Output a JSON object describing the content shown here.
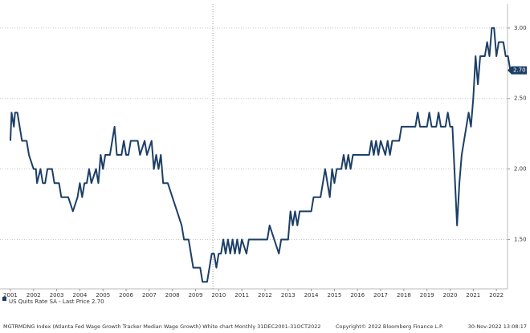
{
  "chart_data": {
    "type": "line",
    "x": [
      2001.0,
      2001.05,
      2001.15,
      2001.2,
      2001.3,
      2001.4,
      2001.5,
      2001.7,
      2001.8,
      2002.0,
      2002.1,
      2002.15,
      2002.3,
      2002.4,
      2002.5,
      2002.6,
      2002.8,
      2002.9,
      2003.1,
      2003.2,
      2003.4,
      2003.5,
      2003.7,
      2003.9,
      2004.0,
      2004.1,
      2004.2,
      2004.3,
      2004.4,
      2004.5,
      2004.7,
      2004.8,
      2004.9,
      2005.0,
      2005.1,
      2005.2,
      2005.3,
      2005.4,
      2005.5,
      2005.6,
      2005.8,
      2005.9,
      2006.0,
      2006.1,
      2006.2,
      2006.5,
      2006.6,
      2006.8,
      2006.9,
      2007.1,
      2007.2,
      2007.3,
      2007.4,
      2007.5,
      2007.6,
      2007.8,
      2008.0,
      2008.2,
      2008.4,
      2008.5,
      2008.7,
      2008.8,
      2008.9,
      2009.2,
      2009.3,
      2009.5,
      2009.6,
      2009.7,
      2009.8,
      2009.9,
      2010.0,
      2010.1,
      2010.2,
      2010.3,
      2010.4,
      2010.5,
      2010.6,
      2010.7,
      2010.8,
      2010.9,
      2011.0,
      2011.2,
      2011.3,
      2011.9,
      2012.1,
      2012.2,
      2012.4,
      2012.6,
      2012.7,
      2013.0,
      2013.1,
      2013.2,
      2013.3,
      2013.4,
      2013.5,
      2014.0,
      2014.1,
      2014.4,
      2014.5,
      2014.6,
      2014.7,
      2014.8,
      2014.9,
      2015.0,
      2015.1,
      2015.3,
      2015.4,
      2015.5,
      2015.6,
      2015.7,
      2015.8,
      2016.5,
      2016.6,
      2016.7,
      2016.8,
      2016.9,
      2017.0,
      2017.2,
      2017.3,
      2017.4,
      2017.5,
      2017.8,
      2017.9,
      2018.5,
      2018.6,
      2018.7,
      2019.0,
      2019.1,
      2019.2,
      2019.4,
      2019.5,
      2019.6,
      2019.8,
      2019.9,
      2020.0,
      2020.1,
      2020.3,
      2020.4,
      2020.5,
      2020.6,
      2020.7,
      2020.8,
      2020.9,
      2021.0,
      2021.1,
      2021.2,
      2021.3,
      2021.5,
      2021.6,
      2021.7,
      2021.8,
      2021.9,
      2022.0,
      2022.1,
      2022.3,
      2022.4,
      2022.5,
      2022.6,
      2022.8
    ],
    "series": [
      {
        "name": "US Quits Rate SA",
        "color": "#1c3f66",
        "values": [
          2.2,
          2.4,
          2.3,
          2.4,
          2.4,
          2.3,
          2.2,
          2.2,
          2.1,
          2.0,
          2.0,
          1.9,
          2.0,
          1.9,
          1.9,
          2.0,
          2.0,
          1.9,
          1.9,
          1.8,
          1.8,
          1.8,
          1.7,
          1.8,
          1.9,
          1.8,
          1.9,
          1.9,
          2.0,
          1.9,
          2.0,
          1.9,
          2.1,
          2.0,
          2.1,
          2.1,
          2.1,
          2.2,
          2.3,
          2.1,
          2.1,
          2.2,
          2.1,
          2.1,
          2.2,
          2.2,
          2.1,
          2.2,
          2.1,
          2.2,
          2.0,
          2.1,
          2.0,
          2.1,
          1.9,
          1.9,
          1.8,
          1.7,
          1.6,
          1.5,
          1.5,
          1.4,
          1.3,
          1.3,
          1.2,
          1.2,
          1.3,
          1.4,
          1.4,
          1.3,
          1.4,
          1.4,
          1.5,
          1.4,
          1.5,
          1.4,
          1.5,
          1.4,
          1.5,
          1.4,
          1.5,
          1.4,
          1.5,
          1.5,
          1.5,
          1.6,
          1.5,
          1.4,
          1.5,
          1.5,
          1.7,
          1.6,
          1.7,
          1.6,
          1.7,
          1.7,
          1.8,
          1.8,
          1.9,
          2.0,
          1.9,
          1.8,
          2.0,
          1.9,
          2.0,
          2.0,
          2.1,
          2.0,
          2.1,
          2.0,
          2.1,
          2.1,
          2.2,
          2.1,
          2.2,
          2.1,
          2.2,
          2.1,
          2.2,
          2.1,
          2.2,
          2.2,
          2.3,
          2.3,
          2.4,
          2.3,
          2.3,
          2.4,
          2.3,
          2.3,
          2.4,
          2.3,
          2.3,
          2.4,
          2.3,
          2.3,
          1.6,
          1.9,
          2.1,
          2.2,
          2.3,
          2.4,
          2.3,
          2.5,
          2.8,
          2.6,
          2.8,
          2.8,
          2.9,
          2.8,
          3.0,
          3.0,
          2.8,
          2.9,
          2.9,
          2.8,
          2.8,
          2.7,
          2.7
        ]
      }
    ],
    "xlim": [
      2000.55,
      2022.48
    ],
    "xticks": [
      2001,
      2002,
      2003,
      2004,
      2005,
      2006,
      2007,
      2008,
      2009,
      2010,
      2011,
      2012,
      2013,
      2014,
      2015,
      2016,
      2017,
      2018,
      2019,
      2020,
      2021,
      2022
    ],
    "ylim": [
      1.15,
      3.17
    ],
    "yticks": [
      {
        "value": 3,
        "label": "3.00"
      },
      {
        "value": 2.5,
        "label": "2.50"
      },
      {
        "value": 2,
        "label": "2.00"
      },
      {
        "value": 1.5,
        "label": "1.50"
      }
    ],
    "grid": true,
    "vertical_line_x": 2009.75,
    "legend_suffix": "- Last Price",
    "last_price": {
      "value": 2.7,
      "label": "2.70"
    },
    "footer_left": "MGTRMDNG Index (Atlanta Fed Wage Growth Tracker Median Wage Growth) White chart  Monthly 31DEC2001-31OCT2022",
    "footer_center": "Copyright© 2022 Bloomberg Finance L.P.",
    "footer_right": "30-Nov-2022 13:08:17"
  }
}
